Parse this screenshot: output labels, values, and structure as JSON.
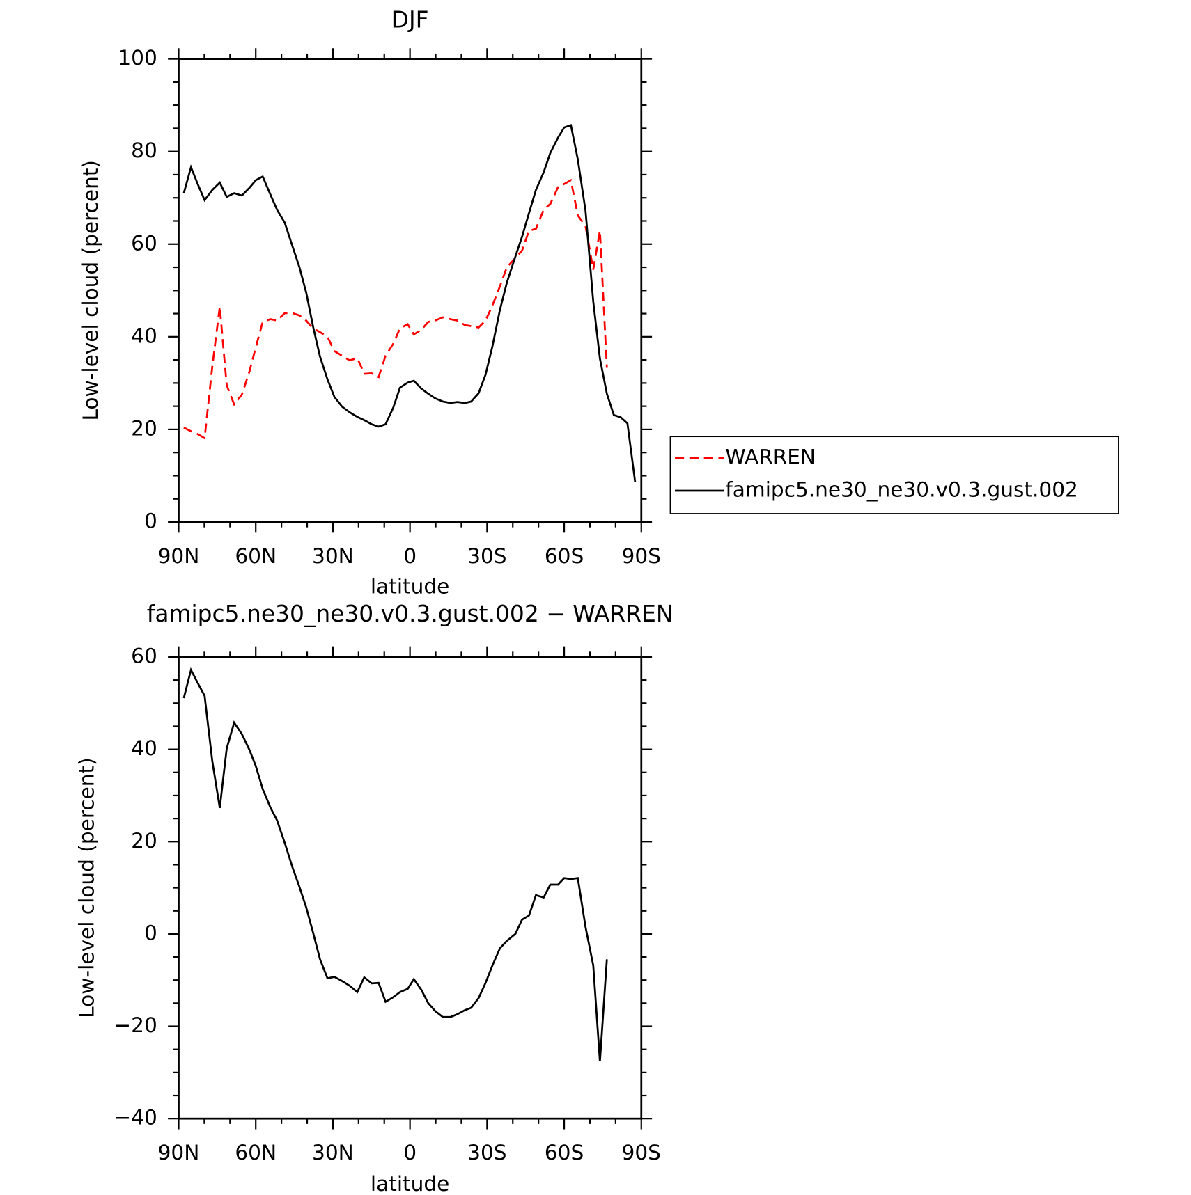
{
  "chart_data": [
    {
      "type": "line",
      "title": "DJF",
      "xlabel": "latitude",
      "ylabel": "Low-level cloud (percent)",
      "xlim": [
        90,
        -90
      ],
      "xticks": [
        {
          "value": 90,
          "label": "90N"
        },
        {
          "value": 60,
          "label": "60N"
        },
        {
          "value": 30,
          "label": "30N"
        },
        0,
        {
          "value": -30,
          "label": "30S"
        },
        {
          "value": -60,
          "label": "60S"
        },
        {
          "value": -90,
          "label": "90S"
        }
      ],
      "ylim": [
        0,
        100
      ],
      "yticks": [
        0,
        20,
        40,
        60,
        80,
        100
      ],
      "legend": "right",
      "x": [
        88,
        85.2,
        82.6,
        79.9,
        76.9,
        74,
        71.3,
        68.4,
        65.4,
        62.4,
        60,
        57.3,
        54.3,
        51.7,
        48.7,
        45.7,
        43,
        40.4,
        37.7,
        35,
        32.1,
        29.4,
        26.4,
        23.5,
        20.5,
        17.8,
        14.9,
        12.2,
        9.5,
        6.5,
        3.9,
        0.9,
        -1.5,
        -4.4,
        -7.1,
        -9.8,
        -12.8,
        -15.7,
        -18.4,
        -21.4,
        -23.8,
        -26.7,
        -29.4,
        -32.1,
        -35,
        -37.7,
        -41,
        -43.6,
        -46.3,
        -49,
        -52,
        -54.6,
        -57.6,
        -60,
        -62.6,
        -65.3,
        -68.3,
        -71.3,
        -73.9,
        -76.6,
        -79.3,
        -82,
        -84.6,
        -87.6
      ],
      "series": [
        {
          "name": "WARREN",
          "color": "#ff0000",
          "style": "dashed",
          "values": [
            20.4,
            19.6,
            19,
            18.1,
            33.6,
            46.5,
            29.5,
            25.4,
            27.5,
            32.6,
            37.7,
            43.2,
            43.8,
            43.5,
            45.1,
            45.1,
            44.6,
            43.5,
            41.8,
            41,
            40,
            36.9,
            35.9,
            34.9,
            35.4,
            32,
            32.1,
            31.3,
            35.9,
            38.5,
            41.8,
            42.7,
            40.5,
            41.5,
            43.2,
            43.5,
            44.2,
            43.8,
            43.5,
            42.5,
            42.3,
            42,
            43.5,
            46.8,
            50.9,
            55,
            57,
            58.6,
            62.9,
            63.3,
            67.4,
            68.7,
            72.3,
            73,
            73.8,
            66.2,
            63.9,
            54.5,
            62.9,
            33.3,
            null,
            null,
            null,
            null
          ]
        },
        {
          "name": "famipc5.ne30_ne30.v0.3.gust.002",
          "color": "#000000",
          "style": "solid",
          "values": [
            71,
            76.6,
            73,
            69.5,
            71.7,
            73.3,
            70.2,
            71,
            70.5,
            72.2,
            73.8,
            74.6,
            70.7,
            67.4,
            64.6,
            59.5,
            55,
            49.6,
            42.2,
            35.7,
            30.8,
            27,
            24.9,
            23.7,
            22.7,
            22,
            21.1,
            20.6,
            21.1,
            24.7,
            29,
            30.1,
            30.5,
            28.8,
            27.7,
            26.7,
            26,
            25.7,
            25.9,
            25.7,
            26,
            27.8,
            31.8,
            38,
            45.8,
            51.7,
            57.3,
            61.6,
            66.7,
            71.7,
            75.5,
            79.7,
            83,
            85.2,
            85.7,
            78.3,
            67.2,
            47.6,
            35.3,
            27.7,
            23.1,
            22.6,
            21.3,
            8.6
          ]
        }
      ]
    },
    {
      "type": "line",
      "title": "famipc5.ne30_ne30.v0.3.gust.002 − WARREN",
      "xlabel": "latitude",
      "ylabel": "Low-level cloud (percent)",
      "xlim": [
        90,
        -90
      ],
      "xticks": [
        {
          "value": 90,
          "label": "90N"
        },
        {
          "value": 60,
          "label": "60N"
        },
        {
          "value": 30,
          "label": "30N"
        },
        0,
        {
          "value": -30,
          "label": "30S"
        },
        {
          "value": -60,
          "label": "60S"
        },
        {
          "value": -90,
          "label": "90S"
        }
      ],
      "ylim": [
        -40,
        60
      ],
      "yticks": [
        {
          "value": -40,
          "label": "−40"
        },
        {
          "value": -20,
          "label": "−20"
        },
        0,
        20,
        40,
        60
      ],
      "x": [
        88,
        85.2,
        82.6,
        79.9,
        76.9,
        74,
        71.3,
        68.4,
        65.4,
        62.4,
        60,
        57.3,
        54.3,
        51.7,
        48.7,
        45.7,
        43,
        40.4,
        37.7,
        35,
        32.1,
        29.4,
        26.4,
        23.5,
        20.5,
        17.8,
        14.9,
        12.2,
        9.5,
        6.5,
        3.9,
        0.9,
        -1.5,
        -4.4,
        -7.1,
        -9.8,
        -12.8,
        -15.7,
        -18.4,
        -21.4,
        -23.8,
        -26.7,
        -29.4,
        -32.1,
        -35,
        -37.7,
        -41,
        -43.6,
        -46.3,
        -49,
        -52,
        -54.6,
        -57.6,
        -60,
        -62.6,
        -65.3,
        -68.3,
        -71.3,
        -73.9,
        -76.6
      ],
      "series": [
        {
          "color": "#000000",
          "style": "solid",
          "values": [
            51.1,
            57.2,
            54.4,
            51.6,
            37.4,
            27.3,
            40.2,
            45.8,
            43.3,
            39.8,
            36.4,
            31.4,
            27.4,
            24.6,
            19.7,
            14.4,
            10.2,
            5.8,
            0.3,
            -5.5,
            -9.6,
            -9.3,
            -10.2,
            -11.2,
            -12.6,
            -9.4,
            -10.7,
            -10.6,
            -14.7,
            -13.7,
            -12.6,
            -11.9,
            -9.8,
            -12.1,
            -15,
            -16.7,
            -18,
            -18,
            -17.4,
            -16.5,
            -16,
            -13.9,
            -10.6,
            -6.8,
            -3.1,
            -1.5,
            0,
            3.1,
            4,
            8.4,
            7.9,
            10.7,
            10.7,
            12.1,
            11.9,
            12.1,
            1.5,
            -6.8,
            -27.6,
            -5.5
          ]
        }
      ]
    }
  ]
}
